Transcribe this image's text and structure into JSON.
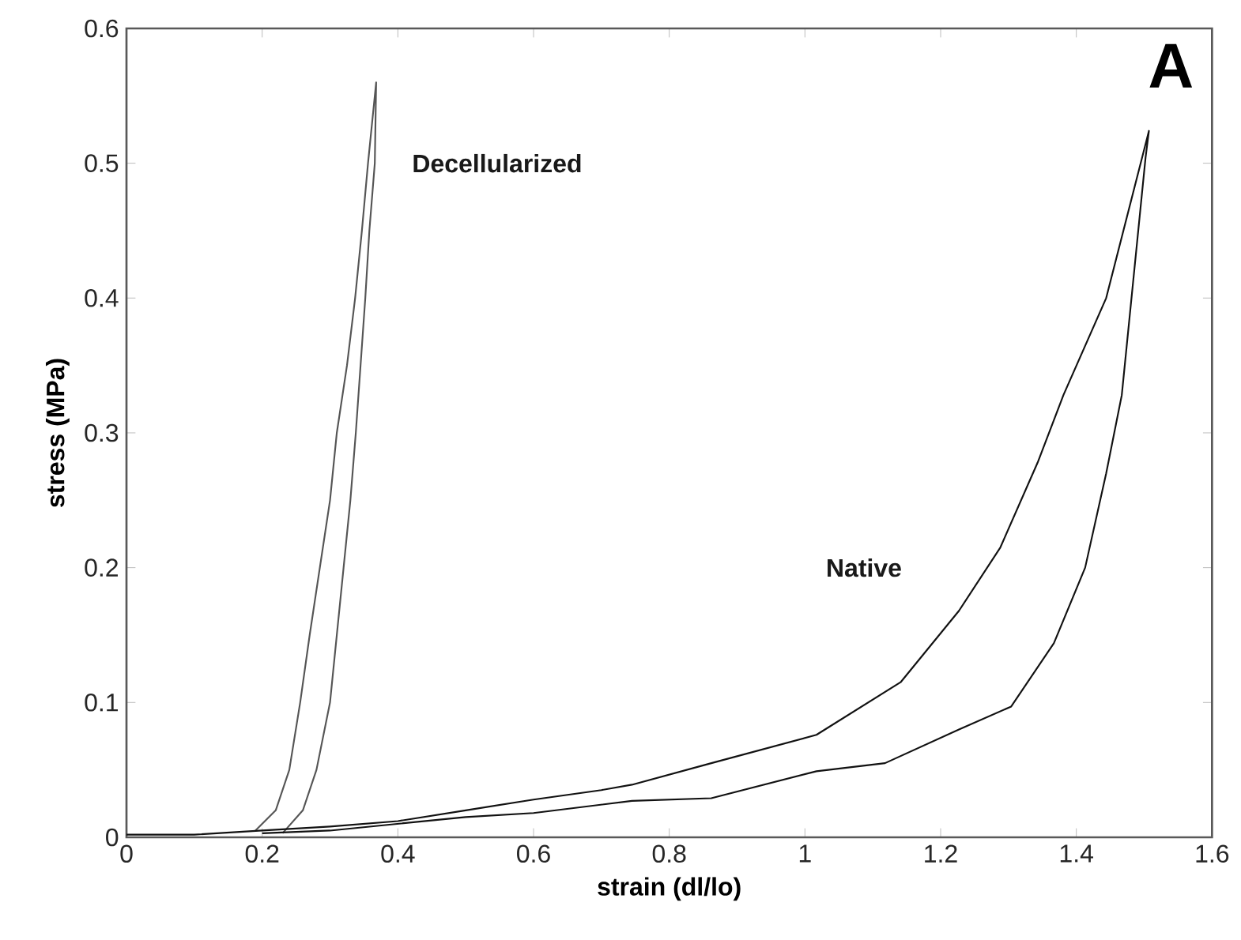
{
  "chart_data": {
    "type": "line",
    "xlabel": "strain (dl/lo)",
    "ylabel": "stress (MPa)",
    "xlim": [
      0,
      1.6
    ],
    "ylim": [
      0,
      0.6
    ],
    "xticks": [
      0,
      0.2,
      0.4,
      0.6,
      0.8,
      1,
      1.2,
      1.4,
      1.6
    ],
    "yticks": [
      0,
      0.1,
      0.2,
      0.3,
      0.4,
      0.5,
      0.6
    ],
    "grid": false,
    "legend": false,
    "marker": "none",
    "line_style": "solid",
    "annotations": [
      "A"
    ],
    "series": [
      {
        "name": "Decellularized",
        "color": "#555555",
        "x": [
          0.19,
          0.22,
          0.24,
          0.256,
          0.27,
          0.285,
          0.3,
          0.31,
          0.325,
          0.337,
          0.347,
          0.356,
          0.368,
          0.366,
          0.358,
          0.352,
          0.345,
          0.338,
          0.33,
          0.32,
          0.31,
          0.3,
          0.28,
          0.26,
          0.23
        ],
        "values": [
          0.005,
          0.02,
          0.05,
          0.1,
          0.15,
          0.2,
          0.25,
          0.3,
          0.35,
          0.4,
          0.45,
          0.5,
          0.56,
          0.5,
          0.45,
          0.4,
          0.35,
          0.3,
          0.25,
          0.2,
          0.15,
          0.1,
          0.05,
          0.02,
          0.003
        ]
      },
      {
        "name": "Native",
        "color": "#111111",
        "x": [
          0,
          0.1,
          0.2,
          0.3,
          0.4,
          0.5,
          0.6,
          0.7,
          0.745,
          0.862,
          1.017,
          1.141,
          1.227,
          1.288,
          1.343,
          1.381,
          1.444,
          1.507,
          1.502,
          1.467,
          1.444,
          1.413,
          1.367,
          1.304,
          1.227,
          1.118,
          1.017,
          0.862,
          0.745,
          0.6,
          0.5,
          0.4,
          0.3,
          0.2
        ],
        "values": [
          0.002,
          0.002,
          0.005,
          0.008,
          0.012,
          0.02,
          0.028,
          0.035,
          0.039,
          0.055,
          0.076,
          0.115,
          0.168,
          0.215,
          0.278,
          0.328,
          0.4,
          0.524,
          0.504,
          0.328,
          0.27,
          0.2,
          0.144,
          0.097,
          0.08,
          0.055,
          0.049,
          0.029,
          0.027,
          0.018,
          0.015,
          0.01,
          0.005,
          0.003
        ]
      }
    ]
  }
}
